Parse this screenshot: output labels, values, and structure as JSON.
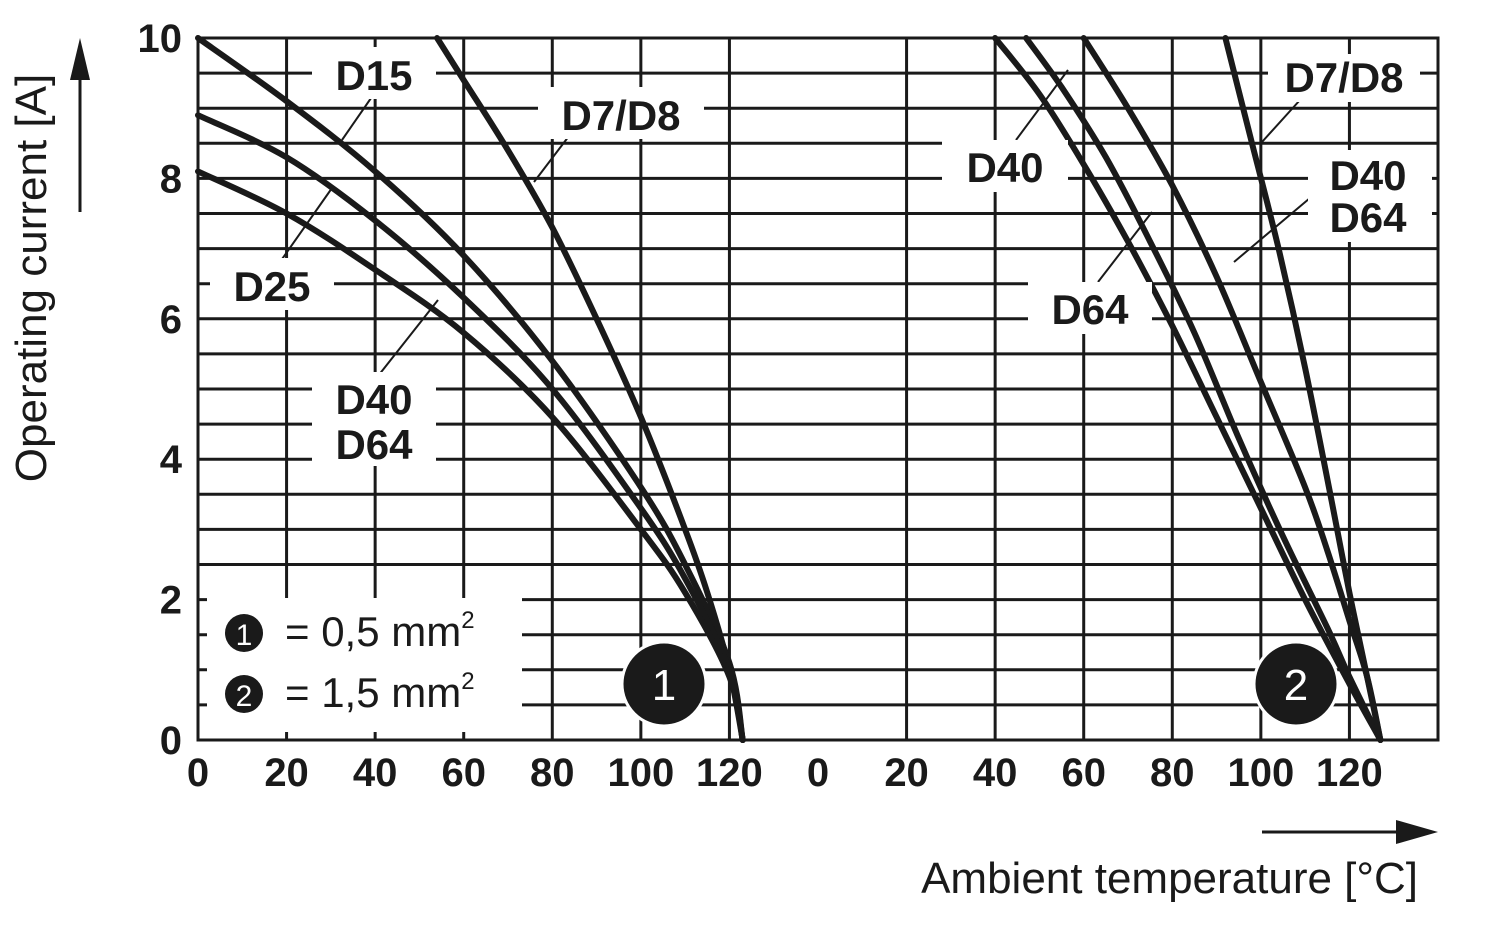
{
  "chart_data": [
    {
      "type": "line",
      "panel_marker": "1",
      "xlabel": "Ambient temperature [°C]",
      "ylabel": "Operating current [A]",
      "xlim": [
        0,
        140
      ],
      "ylim": [
        0,
        10
      ],
      "x_ticks": [
        "0",
        "20",
        "40",
        "60",
        "80",
        "100",
        "120"
      ],
      "y_ticks": [
        "0",
        "2",
        "4",
        "6",
        "8",
        "10"
      ],
      "grid": true,
      "series": [
        {
          "name": "D15",
          "x": [
            0,
            20,
            40,
            60,
            80,
            100,
            110,
            120,
            123
          ],
          "y": [
            10,
            9.1,
            8.1,
            6.9,
            5.4,
            3.6,
            2.5,
            1.1,
            0
          ]
        },
        {
          "name": "D7/D8",
          "x": [
            54,
            60,
            70,
            80,
            90,
            100,
            110,
            115,
            120,
            123
          ],
          "y": [
            10,
            9.4,
            8.4,
            7.3,
            6.0,
            4.6,
            3.0,
            2.1,
            1.0,
            0
          ]
        },
        {
          "name": "D25",
          "x": [
            0,
            20,
            40,
            60,
            80,
            100,
            110,
            120,
            123
          ],
          "y": [
            8.9,
            8.3,
            7.4,
            6.3,
            5.0,
            3.3,
            2.3,
            1.0,
            0
          ]
        },
        {
          "name": "D40 D64",
          "x": [
            0,
            20,
            40,
            60,
            80,
            100,
            110,
            120,
            123
          ],
          "y": [
            8.1,
            7.5,
            6.7,
            5.8,
            4.6,
            3.0,
            2.1,
            0.9,
            0
          ]
        }
      ],
      "labels": [
        {
          "text": "D15",
          "series": "D15"
        },
        {
          "text": "D7/D8",
          "series": "D7/D8"
        },
        {
          "text": "D25",
          "series": "D25"
        },
        {
          "text": "D40",
          "series": "D40 D64"
        },
        {
          "text": "D64",
          "series": "D40 D64"
        }
      ]
    },
    {
      "type": "line",
      "panel_marker": "2",
      "xlim": [
        0,
        140
      ],
      "ylim": [
        0,
        10
      ],
      "x_ticks": [
        "0",
        "20",
        "40",
        "60",
        "80",
        "100",
        "120"
      ],
      "grid": true,
      "series": [
        {
          "name": "D40 (left)",
          "x": [
            40,
            50,
            60,
            70,
            80,
            90,
            100,
            110,
            120,
            127
          ],
          "y": [
            10,
            9.2,
            8.2,
            7.1,
            5.9,
            4.6,
            3.3,
            2.0,
            0.8,
            0
          ]
        },
        {
          "name": "D64 (left)",
          "x": [
            47,
            55,
            65,
            75,
            85,
            95,
            105,
            115,
            120,
            127
          ],
          "y": [
            10,
            9.3,
            8.3,
            7.1,
            5.8,
            4.3,
            2.9,
            1.6,
            0.9,
            0
          ]
        },
        {
          "name": "D40 D64 (right)",
          "x": [
            60,
            70,
            80,
            90,
            100,
            110,
            115,
            120,
            124,
            127
          ],
          "y": [
            10,
            9.0,
            7.9,
            6.6,
            5.1,
            3.6,
            2.7,
            1.7,
            0.9,
            0
          ]
        },
        {
          "name": "D7/D8",
          "x": [
            92,
            98,
            104,
            110,
            116,
            120,
            124,
            127
          ],
          "y": [
            10,
            8.5,
            7.0,
            5.3,
            3.4,
            2.1,
            0.9,
            0
          ]
        }
      ],
      "labels": [
        {
          "text": "D40",
          "series": "D40 (left)"
        },
        {
          "text": "D64",
          "series": "D64 (left)"
        },
        {
          "text": "D40",
          "series": "D40 D64 (right)"
        },
        {
          "text": "D64",
          "series": "D40 D64 (right)"
        },
        {
          "text": "D7/D8",
          "series": "D7/D8"
        }
      ]
    }
  ],
  "legend": [
    {
      "marker": "1",
      "text": "= 0,5 mm",
      "sup": "2"
    },
    {
      "marker": "2",
      "text": "= 1,5 mm",
      "sup": "2"
    }
  ],
  "colors": {
    "ink": "#1a1a1a",
    "background": "#ffffff"
  }
}
